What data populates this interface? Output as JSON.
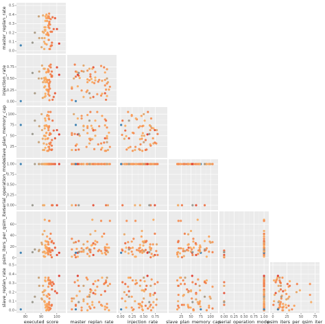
{
  "chart_data": {
    "type": "scatter",
    "layout": "pairs-lower-triangle",
    "variables": [
      "executed_score",
      "master_replan_rate",
      "injection_rate",
      "slave_plan_memory_cap",
      "serial_operation_mode",
      "psim_iters_per_qsim_iter",
      "slave_replan_rate"
    ],
    "x_variables": [
      {
        "name": "executed_score",
        "ticks": [
          80,
          90,
          100
        ],
        "range": [
          76,
          104
        ]
      },
      {
        "name": "master_replan_rate",
        "ticks": [],
        "range": [
          0,
          0.45
        ]
      },
      {
        "name": "injection_rate",
        "ticks": [
          0,
          0.25,
          0.5,
          0.75
        ],
        "tick_labels": [
          "0.00",
          "0.25",
          "0.50",
          "0.75"
        ],
        "range": [
          0,
          0.95
        ]
      },
      {
        "name": "slave_plan_memory_cap",
        "ticks": [
          25,
          50,
          75,
          100
        ],
        "range": [
          0,
          112
        ]
      },
      {
        "name": "serial_operation_mode",
        "ticks": [
          0,
          0.25,
          0.5,
          0.75,
          1
        ],
        "tick_labels": [
          "0.00",
          "0.25",
          "0.50",
          "0.75",
          "1.00"
        ],
        "range": [
          -0.05,
          1.05
        ]
      }
    ],
    "y_variables": [
      {
        "name": "master_replan_rate",
        "ticks": [
          0,
          0.1,
          0.2,
          0.3,
          0.4,
          0.5
        ],
        "tick_labels": [
          "0.0",
          "0.1",
          "0.2",
          "0.3",
          "0.4",
          "0.5"
        ],
        "range": [
          0,
          0.5
        ]
      },
      {
        "name": "injection_rate",
        "ticks": [
          0,
          0.25,
          0.5,
          0.75
        ],
        "tick_labels": [
          "0.00",
          "0.25",
          "0.50",
          "0.75"
        ],
        "range": [
          -0.03,
          0.95
        ]
      },
      {
        "name": "slave_plan_memory_cap",
        "ticks": [
          25,
          50,
          75,
          100
        ],
        "range": [
          5,
          110
        ]
      },
      {
        "name": "serial_operation_mode",
        "ticks": [
          0,
          0.25,
          0.5,
          0.75,
          1
        ],
        "tick_labels": [
          "0.00",
          "0.25",
          "0.50",
          "0.75",
          "1.00"
        ],
        "range": [
          -0.05,
          1.05
        ]
      },
      {
        "name": "psim_iters_per_qsim_iter",
        "ticks": [
          0,
          20,
          40,
          60
        ],
        "range": [
          -3,
          78
        ]
      },
      {
        "name": "slave_replan_rate",
        "ticks": [
          0,
          0.1,
          0.2,
          0.3,
          0.4,
          0.5
        ],
        "tick_labels": [
          "0.0",
          "0.1",
          "0.2",
          "0.3",
          "0.4",
          "0.5"
        ],
        "range": [
          0,
          0.5
        ]
      }
    ],
    "extra_x_title": "psim_iters_per_qsim_iter",
    "extra_x_ticks": [
      0,
      25,
      50,
      75
    ],
    "extra_x_range": [
      0,
      78
    ],
    "color_encoding": "executed_score",
    "colors": {
      "low": "#2c7bb6",
      "mid": "#fdae61",
      "high": "#d7191c"
    },
    "score_range": [
      76,
      104
    ],
    "grid": true,
    "legend": "none",
    "point_count": 60,
    "points": [
      {
        "executed_score": 98.9,
        "master_replan_rate": 0.36,
        "injection_rate": 0.18,
        "slave_plan_memory_cap": 44,
        "serial_operation_mode": 1,
        "psim_iters_per_qsim_iter": 18,
        "slave_replan_rate": 0.21
      },
      {
        "executed_score": 94.7,
        "master_replan_rate": 0.17,
        "injection_rate": 0.21,
        "slave_plan_memory_cap": 24,
        "serial_operation_mode": 1,
        "psim_iters_per_qsim_iter": 17,
        "slave_replan_rate": 0.36
      },
      {
        "executed_score": 96.0,
        "master_replan_rate": 0.21,
        "injection_rate": 0.59,
        "slave_plan_memory_cap": 105,
        "serial_operation_mode": 1,
        "psim_iters_per_qsim_iter": 10,
        "slave_replan_rate": 0.02
      },
      {
        "executed_score": 91.2,
        "master_replan_rate": 0.39,
        "injection_rate": 0.42,
        "slave_plan_memory_cap": 17,
        "serial_operation_mode": 0,
        "psim_iters_per_qsim_iter": 10,
        "slave_replan_rate": 0.27
      },
      {
        "executed_score": 95.1,
        "master_replan_rate": 0.36,
        "injection_rate": 0.35,
        "slave_plan_memory_cap": 88,
        "serial_operation_mode": 1,
        "psim_iters_per_qsim_iter": 14,
        "slave_replan_rate": 0.3
      },
      {
        "executed_score": 92.6,
        "master_replan_rate": 0.22,
        "injection_rate": 0.49,
        "slave_plan_memory_cap": 73,
        "serial_operation_mode": 1,
        "psim_iters_per_qsim_iter": 22,
        "slave_replan_rate": 0.22
      },
      {
        "executed_score": 93.9,
        "master_replan_rate": 0.36,
        "injection_rate": 0.47,
        "slave_plan_memory_cap": 15,
        "serial_operation_mode": 1,
        "psim_iters_per_qsim_iter": 9,
        "slave_replan_rate": 0.01
      },
      {
        "executed_score": 88.8,
        "master_replan_rate": 0.14,
        "injection_rate": 0.65,
        "slave_plan_memory_cap": 72,
        "serial_operation_mode": 1,
        "psim_iters_per_qsim_iter": 14,
        "slave_replan_rate": 0.27
      },
      {
        "executed_score": 92.8,
        "master_replan_rate": 0.38,
        "injection_rate": 0.12,
        "slave_plan_memory_cap": 49,
        "serial_operation_mode": 1,
        "psim_iters_per_qsim_iter": 18,
        "slave_replan_rate": 0.03
      },
      {
        "executed_score": 96.8,
        "master_replan_rate": 0.06,
        "injection_rate": 0.65,
        "slave_plan_memory_cap": 27,
        "serial_operation_mode": 0,
        "psim_iters_per_qsim_iter": 1,
        "slave_replan_rate": 0.06
      },
      {
        "executed_score": 91.9,
        "master_replan_rate": 0.1,
        "injection_rate": 0.51,
        "slave_plan_memory_cap": 50,
        "serial_operation_mode": 1,
        "psim_iters_per_qsim_iter": 11,
        "slave_replan_rate": 0.21
      },
      {
        "executed_score": 93.4,
        "master_replan_rate": 0.4,
        "injection_rate": 0.26,
        "slave_plan_memory_cap": 57,
        "serial_operation_mode": 1,
        "psim_iters_per_qsim_iter": 18,
        "slave_replan_rate": 0.0
      },
      {
        "executed_score": 95.1,
        "master_replan_rate": 0.41,
        "injection_rate": 0.32,
        "slave_plan_memory_cap": 24,
        "serial_operation_mode": 1,
        "psim_iters_per_qsim_iter": 66,
        "slave_replan_rate": 0.29
      },
      {
        "executed_score": 100.1,
        "master_replan_rate": 0.24,
        "injection_rate": 0.74,
        "slave_plan_memory_cap": 63,
        "serial_operation_mode": 0,
        "psim_iters_per_qsim_iter": 5,
        "slave_replan_rate": 0.19
      },
      {
        "executed_score": 93.8,
        "master_replan_rate": 0.18,
        "injection_rate": 0.42,
        "slave_plan_memory_cap": 72,
        "serial_operation_mode": 1,
        "psim_iters_per_qsim_iter": 18,
        "slave_replan_rate": 0.07
      },
      {
        "executed_score": 95.1,
        "master_replan_rate": 0.3,
        "injection_rate": 0.47,
        "slave_plan_memory_cap": 72,
        "serial_operation_mode": 1,
        "psim_iters_per_qsim_iter": 14,
        "slave_replan_rate": 0.09
      },
      {
        "executed_score": 93.3,
        "master_replan_rate": 0.18,
        "injection_rate": 0.48,
        "slave_plan_memory_cap": 56,
        "serial_operation_mode": 1,
        "psim_iters_per_qsim_iter": 29,
        "slave_replan_rate": 0.0
      },
      {
        "executed_score": 94.6,
        "master_replan_rate": 0.28,
        "injection_rate": 0.16,
        "slave_plan_memory_cap": 105,
        "serial_operation_mode": 1,
        "psim_iters_per_qsim_iter": 28,
        "slave_replan_rate": 0.26
      },
      {
        "executed_score": 94.4,
        "master_replan_rate": 0.38,
        "injection_rate": 0.7,
        "slave_plan_memory_cap": 44,
        "serial_operation_mode": 1,
        "psim_iters_per_qsim_iter": 24,
        "slave_replan_rate": 0.03
      },
      {
        "executed_score": 92.8,
        "master_replan_rate": 0.26,
        "injection_rate": 0.52,
        "slave_plan_memory_cap": 85,
        "serial_operation_mode": 1,
        "psim_iters_per_qsim_iter": 30,
        "slave_replan_rate": 0.32
      },
      {
        "executed_score": 92.0,
        "master_replan_rate": 0.02,
        "injection_rate": 0.31,
        "slave_plan_memory_cap": 17,
        "serial_operation_mode": 0,
        "psim_iters_per_qsim_iter": 2,
        "slave_replan_rate": 0.1
      },
      {
        "executed_score": 90.6,
        "master_replan_rate": 0.14,
        "injection_rate": 0.78,
        "slave_plan_memory_cap": 63,
        "serial_operation_mode": 1,
        "psim_iters_per_qsim_iter": 24,
        "slave_replan_rate": 0.12
      },
      {
        "executed_score": 96.6,
        "master_replan_rate": 0.06,
        "injection_rate": 0.54,
        "slave_plan_memory_cap": 17,
        "serial_operation_mode": 1,
        "psim_iters_per_qsim_iter": 28,
        "slave_replan_rate": 0.05
      },
      {
        "executed_score": 95.2,
        "master_replan_rate": 0.32,
        "injection_rate": 0.77,
        "slave_plan_memory_cap": 32,
        "serial_operation_mode": 1,
        "psim_iters_per_qsim_iter": 12,
        "slave_replan_rate": 0.06
      },
      {
        "executed_score": 94.8,
        "master_replan_rate": 0.12,
        "injection_rate": 0.24,
        "slave_plan_memory_cap": 96,
        "serial_operation_mode": 1,
        "psim_iters_per_qsim_iter": 11,
        "slave_replan_rate": 0.03
      },
      {
        "executed_score": 92.1,
        "master_replan_rate": 0.26,
        "injection_rate": 0.46,
        "slave_plan_memory_cap": 50,
        "serial_operation_mode": 1,
        "psim_iters_per_qsim_iter": 48,
        "slave_replan_rate": 0.22
      },
      {
        "executed_score": 92.3,
        "master_replan_rate": 0.23,
        "injection_rate": 0.71,
        "slave_plan_memory_cap": 67,
        "serial_operation_mode": 1,
        "psim_iters_per_qsim_iter": 68,
        "slave_replan_rate": 0.09
      },
      {
        "executed_score": 92.7,
        "master_replan_rate": 0.23,
        "injection_rate": 0.42,
        "slave_plan_memory_cap": 42,
        "serial_operation_mode": 1,
        "psim_iters_per_qsim_iter": 23,
        "slave_replan_rate": 0.06
      },
      {
        "executed_score": 95.6,
        "master_replan_rate": 0.02,
        "injection_rate": 0.28,
        "slave_plan_memory_cap": 56,
        "serial_operation_mode": 1,
        "psim_iters_per_qsim_iter": 34,
        "slave_replan_rate": 0.01
      },
      {
        "executed_score": 94.9,
        "master_replan_rate": 0.12,
        "injection_rate": 0.66,
        "slave_plan_memory_cap": 90,
        "serial_operation_mode": 1,
        "psim_iters_per_qsim_iter": 17,
        "slave_replan_rate": 0.0
      },
      {
        "executed_score": 96.9,
        "master_replan_rate": 0.21,
        "injection_rate": 0.54,
        "slave_plan_memory_cap": 40,
        "serial_operation_mode": 1,
        "psim_iters_per_qsim_iter": 14,
        "slave_replan_rate": 0.23
      },
      {
        "executed_score": 93.5,
        "master_replan_rate": 0.07,
        "injection_rate": 0.64,
        "slave_plan_memory_cap": 30,
        "serial_operation_mode": 1,
        "psim_iters_per_qsim_iter": 16,
        "slave_replan_rate": 0.16
      },
      {
        "executed_score": 91.0,
        "master_replan_rate": 0.21,
        "injection_rate": 0.08,
        "slave_plan_memory_cap": 43,
        "serial_operation_mode": 1,
        "psim_iters_per_qsim_iter": 42,
        "slave_replan_rate": 0.2
      },
      {
        "executed_score": 98.0,
        "master_replan_rate": 0.24,
        "injection_rate": 0.1,
        "slave_plan_memory_cap": 62,
        "serial_operation_mode": 1,
        "psim_iters_per_qsim_iter": 26,
        "slave_replan_rate": 0.29
      },
      {
        "executed_score": 94.5,
        "master_replan_rate": 0.37,
        "injection_rate": 0.26,
        "slave_plan_memory_cap": 15,
        "serial_operation_mode": 1,
        "psim_iters_per_qsim_iter": 6,
        "slave_replan_rate": 0.33
      },
      {
        "executed_score": 94.1,
        "master_replan_rate": 0.2,
        "injection_rate": 0.46,
        "slave_plan_memory_cap": 43,
        "serial_operation_mode": 1,
        "psim_iters_per_qsim_iter": 13,
        "slave_replan_rate": 0.04
      },
      {
        "executed_score": 95.3,
        "master_replan_rate": 0.02,
        "injection_rate": 0.03,
        "slave_plan_memory_cap": 52,
        "serial_operation_mode": 1,
        "psim_iters_per_qsim_iter": 15,
        "slave_replan_rate": 0.13
      },
      {
        "executed_score": 93.3,
        "master_replan_rate": 0.36,
        "injection_rate": 0.63,
        "slave_plan_memory_cap": 74,
        "serial_operation_mode": 1,
        "psim_iters_per_qsim_iter": 19,
        "slave_replan_rate": 0.04
      },
      {
        "executed_score": 94.0,
        "master_replan_rate": 0.18,
        "injection_rate": 0.24,
        "slave_plan_memory_cap": 98,
        "serial_operation_mode": 1,
        "psim_iters_per_qsim_iter": 29,
        "slave_replan_rate": 0.15
      },
      {
        "executed_score": 90.3,
        "master_replan_rate": 0.04,
        "injection_rate": 0.5,
        "slave_plan_memory_cap": 100,
        "serial_operation_mode": 1,
        "psim_iters_per_qsim_iter": 27,
        "slave_replan_rate": 0.13
      },
      {
        "executed_score": 96.9,
        "master_replan_rate": 0.09,
        "injection_rate": 0.56,
        "slave_plan_memory_cap": 18,
        "serial_operation_mode": 1,
        "psim_iters_per_qsim_iter": 30,
        "slave_replan_rate": 0.27
      },
      {
        "executed_score": 92.7,
        "master_replan_rate": 0.33,
        "injection_rate": 0.17,
        "slave_plan_memory_cap": 22,
        "serial_operation_mode": 1,
        "psim_iters_per_qsim_iter": 8,
        "slave_replan_rate": 0.36
      },
      {
        "executed_score": 93.8,
        "master_replan_rate": 0.33,
        "injection_rate": 0.45,
        "slave_plan_memory_cap": 96,
        "serial_operation_mode": 1,
        "psim_iters_per_qsim_iter": 38,
        "slave_replan_rate": 0.05
      },
      {
        "executed_score": 94.9,
        "master_replan_rate": 0.38,
        "injection_rate": 0.39,
        "slave_plan_memory_cap": 69,
        "serial_operation_mode": 1,
        "psim_iters_per_qsim_iter": 13,
        "slave_replan_rate": 0.07
      },
      {
        "executed_score": 88.5,
        "master_replan_rate": 0.38,
        "injection_rate": 0.5,
        "slave_plan_memory_cap": 35,
        "serial_operation_mode": 1,
        "psim_iters_per_qsim_iter": 12,
        "slave_replan_rate": 0.36
      },
      {
        "executed_score": 94.6,
        "master_replan_rate": 0.18,
        "injection_rate": 0.67,
        "slave_plan_memory_cap": 68,
        "serial_operation_mode": 1,
        "psim_iters_per_qsim_iter": 7,
        "slave_replan_rate": 0.34
      },
      {
        "executed_score": 91.7,
        "master_replan_rate": 0.2,
        "injection_rate": 0.71,
        "slave_plan_memory_cap": 32,
        "serial_operation_mode": 1,
        "psim_iters_per_qsim_iter": 3,
        "slave_replan_rate": 0.17
      },
      {
        "executed_score": 95.3,
        "master_replan_rate": 0.25,
        "injection_rate": 0.4,
        "slave_plan_memory_cap": 19,
        "serial_operation_mode": 1,
        "psim_iters_per_qsim_iter": 17,
        "slave_replan_rate": 0.03
      },
      {
        "executed_score": 97.3,
        "master_replan_rate": 0.37,
        "injection_rate": 0.04,
        "slave_plan_memory_cap": 85,
        "serial_operation_mode": 0,
        "psim_iters_per_qsim_iter": 13,
        "slave_replan_rate": 0.31
      },
      {
        "executed_score": 96.1,
        "master_replan_rate": 0.35,
        "injection_rate": 0.74,
        "slave_plan_memory_cap": 34,
        "serial_operation_mode": 1,
        "psim_iters_per_qsim_iter": 43,
        "slave_replan_rate": 0.29
      },
      {
        "executed_score": 96.1,
        "master_replan_rate": 0.05,
        "injection_rate": 0.8,
        "slave_plan_memory_cap": 54,
        "serial_operation_mode": 1,
        "psim_iters_per_qsim_iter": 5,
        "slave_replan_rate": 0.31
      },
      {
        "executed_score": 92.5,
        "master_replan_rate": 0.08,
        "injection_rate": 0.33,
        "slave_plan_memory_cap": 90,
        "serial_operation_mode": 1,
        "psim_iters_per_qsim_iter": 2,
        "slave_replan_rate": 0.33
      },
      {
        "executed_score": 95.3,
        "master_replan_rate": 0.32,
        "injection_rate": 0.13,
        "slave_plan_memory_cap": 18,
        "serial_operation_mode": 1,
        "psim_iters_per_qsim_iter": 66,
        "slave_replan_rate": 0.17
      },
      {
        "executed_score": 101.5,
        "master_replan_rate": 0.08,
        "injection_rate": 0.58,
        "slave_plan_memory_cap": 53,
        "serial_operation_mode": 1,
        "psim_iters_per_qsim_iter": 9,
        "slave_replan_rate": 0.38
      },
      {
        "executed_score": 94.7,
        "master_replan_rate": 0.26,
        "injection_rate": 0.64,
        "slave_plan_memory_cap": 63,
        "serial_operation_mode": 1,
        "psim_iters_per_qsim_iter": 24,
        "slave_replan_rate": 0.18
      },
      {
        "executed_score": 95.7,
        "master_replan_rate": 0.29,
        "injection_rate": 0.43,
        "slave_plan_memory_cap": 30,
        "serial_operation_mode": 1,
        "psim_iters_per_qsim_iter": 12,
        "slave_replan_rate": 0.33
      },
      {
        "executed_score": 77.0,
        "master_replan_rate": 0.06,
        "injection_rate": 0.01,
        "slave_plan_memory_cap": 75,
        "serial_operation_mode": 1,
        "psim_iters_per_qsim_iter": 9,
        "slave_replan_rate": 0.01
      },
      {
        "executed_score": 84.5,
        "master_replan_rate": 0.09,
        "injection_rate": 0.62,
        "slave_plan_memory_cap": 54,
        "serial_operation_mode": 0,
        "psim_iters_per_qsim_iter": 10,
        "slave_replan_rate": 0.09
      },
      {
        "executed_score": 86.0,
        "master_replan_rate": 0.2,
        "injection_rate": 0.18,
        "slave_plan_memory_cap": 85,
        "serial_operation_mode": 1,
        "psim_iters_per_qsim_iter": 15,
        "slave_replan_rate": 0.15
      },
      {
        "executed_score": 92.2,
        "master_replan_rate": 0.14,
        "injection_rate": 0.1,
        "slave_plan_memory_cap": 73,
        "serial_operation_mode": 1,
        "psim_iters_per_qsim_iter": 11,
        "slave_replan_rate": 0.1
      }
    ]
  }
}
